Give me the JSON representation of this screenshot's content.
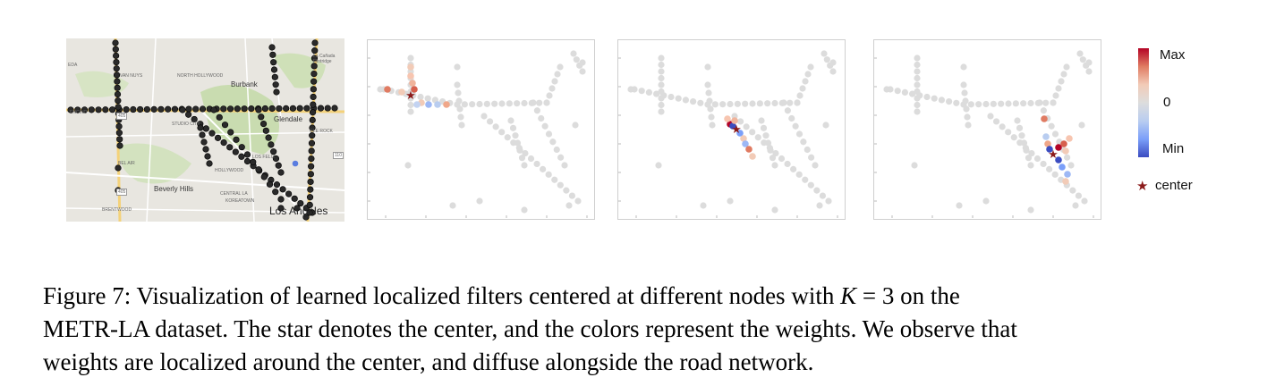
{
  "figure": {
    "map": {
      "labels": {
        "van_nuys": "VAN NUYS",
        "north_hollywood": "NORTH HOLLYWOOD",
        "burbank": "Burbank",
        "glendale": "Glendale",
        "encino": "ENCINO",
        "studio_city": "STUDIO CITY",
        "glenn_rock": "GLE ROCK",
        "los_feliz": "LOS FELIZ",
        "bel_air": "BEL AIR",
        "hollywood": "HOLLYWOOD",
        "beverly_hills": "Beverly Hills",
        "central_la": "CENTRAL LA",
        "koreatown": "KOREATOWN",
        "brentwood": "BRENTWOOD",
        "los_angeles": "Los Angeles",
        "la_canada": "La Cañada Flintridge",
        "shield_405": "405",
        "shield_101": "101",
        "shield_110": "110",
        "shield_134": "134"
      }
    },
    "colorbar": {
      "max": "Max",
      "zero": "0",
      "min": "Min",
      "colors": [
        "#b40426",
        "#dddddd",
        "#3b4cc0"
      ]
    },
    "legend": {
      "center_label": "center",
      "center_color": "#8b1a1a"
    },
    "node_color": "#dcdcdc"
  },
  "caption": {
    "line1_prefix": "Figure 7: Visualization of learned localized filters centered at different nodes with ",
    "K_symbol": "K",
    "line1_suffix": " = 3 on the",
    "line2": "METR-LA dataset. The star denotes the center, and the colors represent the weights. We observe that",
    "line3": "weights are localized around the center, and diffuse alongside the road network."
  }
}
